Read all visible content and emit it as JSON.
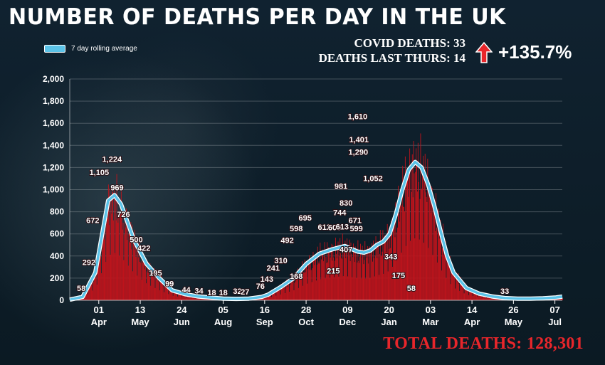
{
  "title": "NUMBER OF DEATHS PER DAY IN THE UK",
  "legend_label": "7 day rolling average",
  "stats": {
    "covid_deaths": "COVID DEATHS: 33",
    "deaths_last_thurs": "DEATHS LAST THURS: 14",
    "change": "+135.7%"
  },
  "total_deaths": "TOTAL DEATHS: 128,301",
  "colors": {
    "bars": "#c0141c",
    "line": "#5bc3e8",
    "line_outline": "#ffffff",
    "total": "#e8262b",
    "arrow": "#e8262b"
  },
  "chart_data": {
    "type": "bar",
    "ylim": [
      0,
      2000
    ],
    "yticks": [
      "0",
      "200",
      "400",
      "600",
      "800",
      "1,000",
      "1,200",
      "1,400",
      "1,600",
      "1,800",
      "2,000"
    ],
    "xticks": [
      {
        "day": "01",
        "month": "Apr"
      },
      {
        "day": "13",
        "month": "May"
      },
      {
        "day": "24",
        "month": "Jun"
      },
      {
        "day": "05",
        "month": "Aug"
      },
      {
        "day": "16",
        "month": "Sep"
      },
      {
        "day": "28",
        "month": "Oct"
      },
      {
        "day": "09",
        "month": "Dec"
      },
      {
        "day": "20",
        "month": "Jan"
      },
      {
        "day": "03",
        "month": "Mar"
      },
      {
        "day": "14",
        "month": "Apr"
      },
      {
        "day": "26",
        "month": "May"
      },
      {
        "day": "07",
        "month": "Jul"
      }
    ],
    "series": [
      {
        "name": "7 day rolling average",
        "points": [
          [
            0,
            5
          ],
          [
            20,
            30
          ],
          [
            40,
            250
          ],
          [
            60,
            900
          ],
          [
            70,
            950
          ],
          [
            80,
            870
          ],
          [
            100,
            550
          ],
          [
            120,
            330
          ],
          [
            140,
            200
          ],
          [
            160,
            90
          ],
          [
            180,
            55
          ],
          [
            200,
            35
          ],
          [
            220,
            25
          ],
          [
            240,
            15
          ],
          [
            260,
            12
          ],
          [
            280,
            15
          ],
          [
            300,
            30
          ],
          [
            310,
            50
          ],
          [
            330,
            120
          ],
          [
            350,
            200
          ],
          [
            370,
            330
          ],
          [
            390,
            420
          ],
          [
            410,
            460
          ],
          [
            430,
            490
          ],
          [
            450,
            440
          ],
          [
            460,
            430
          ],
          [
            470,
            450
          ],
          [
            480,
            500
          ],
          [
            490,
            530
          ],
          [
            500,
            600
          ],
          [
            510,
            780
          ],
          [
            520,
            1000
          ],
          [
            530,
            1180
          ],
          [
            540,
            1250
          ],
          [
            550,
            1200
          ],
          [
            560,
            1050
          ],
          [
            570,
            850
          ],
          [
            580,
            620
          ],
          [
            590,
            400
          ],
          [
            600,
            250
          ],
          [
            620,
            110
          ],
          [
            640,
            60
          ],
          [
            660,
            35
          ],
          [
            680,
            20
          ],
          [
            700,
            15
          ],
          [
            720,
            15
          ],
          [
            740,
            18
          ],
          [
            760,
            25
          ],
          [
            770,
            33
          ]
        ]
      }
    ],
    "labels": [
      {
        "x": 18,
        "y": 58,
        "text": "58"
      },
      {
        "x": 30,
        "y": 292,
        "text": "292"
      },
      {
        "x": 36,
        "y": 672,
        "text": "672"
      },
      {
        "x": 46,
        "y": 1105,
        "text": "1,105"
      },
      {
        "x": 66,
        "y": 1224,
        "text": "1,224"
      },
      {
        "x": 74,
        "y": 969,
        "text": "969"
      },
      {
        "x": 84,
        "y": 726,
        "text": "726"
      },
      {
        "x": 104,
        "y": 500,
        "text": "500"
      },
      {
        "x": 116,
        "y": 422,
        "text": "422"
      },
      {
        "x": 134,
        "y": 195,
        "text": "195"
      },
      {
        "x": 156,
        "y": 99,
        "text": "99"
      },
      {
        "x": 182,
        "y": 44,
        "text": "44"
      },
      {
        "x": 202,
        "y": 34,
        "text": "34"
      },
      {
        "x": 222,
        "y": 18,
        "text": "18"
      },
      {
        "x": 240,
        "y": 18,
        "text": "18"
      },
      {
        "x": 262,
        "y": 32,
        "text": "32"
      },
      {
        "x": 274,
        "y": 27,
        "text": "27"
      },
      {
        "x": 298,
        "y": 76,
        "text": "76"
      },
      {
        "x": 308,
        "y": 143,
        "text": "143"
      },
      {
        "x": 318,
        "y": 241,
        "text": "241"
      },
      {
        "x": 330,
        "y": 310,
        "text": "310"
      },
      {
        "x": 340,
        "y": 492,
        "text": "492"
      },
      {
        "x": 354,
        "y": 168,
        "text": "168"
      },
      {
        "x": 354,
        "y": 598,
        "text": "598"
      },
      {
        "x": 368,
        "y": 695,
        "text": "695"
      },
      {
        "x": 398,
        "y": 612,
        "text": "612"
      },
      {
        "x": 414,
        "y": 609,
        "text": "609"
      },
      {
        "x": 412,
        "y": 215,
        "text": "215"
      },
      {
        "x": 422,
        "y": 744,
        "text": "744"
      },
      {
        "x": 426,
        "y": 613,
        "text": "613"
      },
      {
        "x": 424,
        "y": 981,
        "text": "981"
      },
      {
        "x": 432,
        "y": 830,
        "text": "830"
      },
      {
        "x": 432,
        "y": 407,
        "text": "407"
      },
      {
        "x": 446,
        "y": 671,
        "text": "671"
      },
      {
        "x": 448,
        "y": 599,
        "text": "599"
      },
      {
        "x": 451,
        "y": 1290,
        "text": "1,290"
      },
      {
        "x": 452,
        "y": 1401,
        "text": "1,401"
      },
      {
        "x": 450,
        "y": 1610,
        "text": "1,610"
      },
      {
        "x": 474,
        "y": 1052,
        "text": "1,052"
      },
      {
        "x": 502,
        "y": 343,
        "text": "343"
      },
      {
        "x": 514,
        "y": 175,
        "text": "175"
      },
      {
        "x": 534,
        "y": 58,
        "text": "58"
      },
      {
        "x": 680,
        "y": 33,
        "text": "33"
      }
    ]
  }
}
